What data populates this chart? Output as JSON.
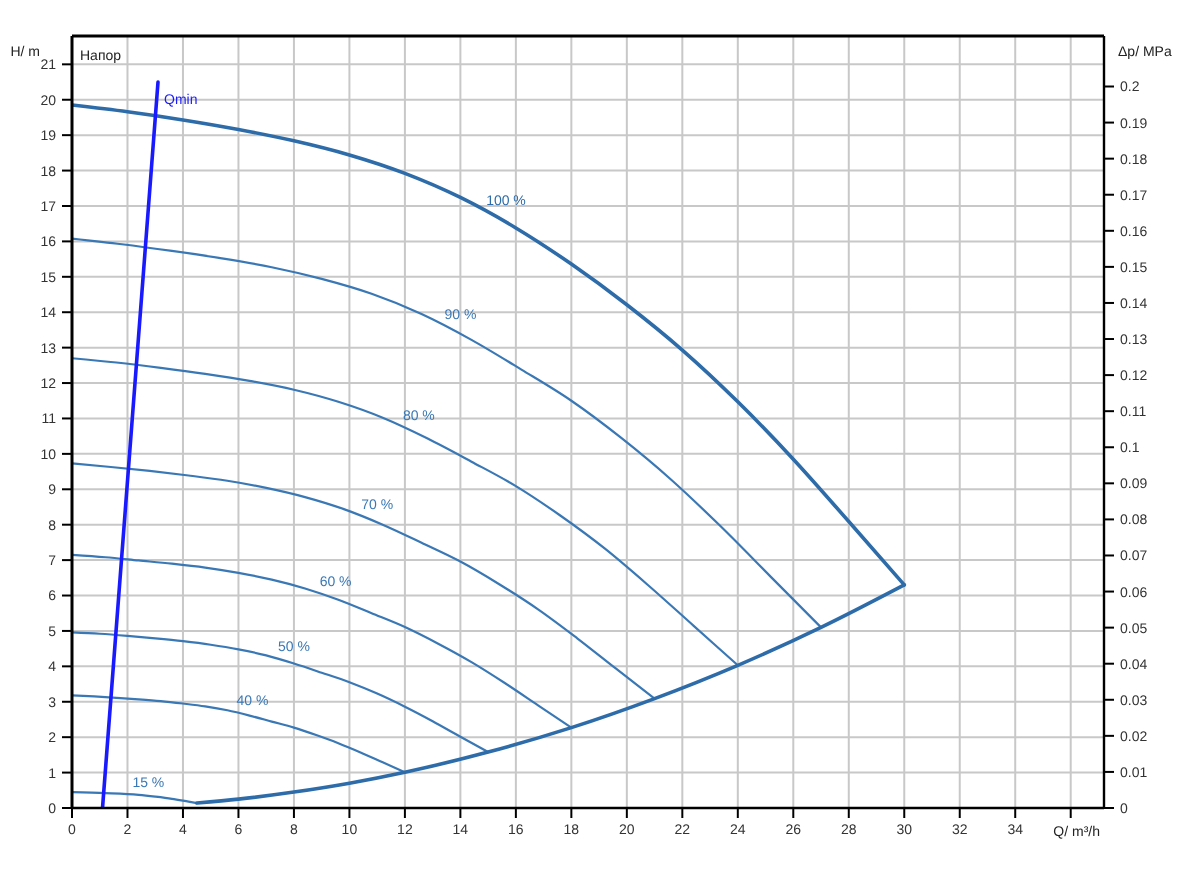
{
  "chart_data": {
    "type": "line",
    "title": "Напор",
    "xlabel": "Q/ m³/h",
    "ylabel": "H/ m",
    "y2label": "Δp/ MPa",
    "xlim": [
      0,
      37.2
    ],
    "xticks": [
      0,
      2,
      4,
      6,
      8,
      10,
      12,
      14,
      16,
      18,
      20,
      22,
      24,
      26,
      28,
      30,
      32,
      34,
      {
        "value": 36,
        "label": null
      }
    ],
    "ylim": [
      0,
      21.8
    ],
    "yticks": [
      0,
      1,
      2,
      3,
      4,
      5,
      6,
      7,
      8,
      9,
      10,
      11,
      12,
      13,
      14,
      15,
      16,
      17,
      18,
      19,
      20,
      21
    ],
    "y2lim": [
      0,
      0.214
    ],
    "y2ticks": [
      0,
      0.01,
      0.02,
      0.03,
      0.04,
      0.05,
      0.06,
      0.07,
      0.08,
      0.09,
      0.1,
      0.11,
      0.12,
      0.13,
      0.14,
      0.15,
      0.16,
      0.17,
      0.18,
      0.19,
      0.2
    ],
    "grid": true,
    "marker": "none",
    "line_style": "solid",
    "series": [
      {
        "name": "100 %",
        "color": "#2d6ca9",
        "x": [
          0,
          2,
          4,
          6,
          8,
          10,
          12,
          14,
          16,
          18,
          20,
          22,
          24,
          26,
          28,
          30
        ],
        "values": [
          19.85,
          19.66,
          19.43,
          19.16,
          18.84,
          18.44,
          17.92,
          17.24,
          16.38,
          15.36,
          14.21,
          12.93,
          11.47,
          9.85,
          8.09,
          6.3
        ]
      },
      {
        "name": "90 %",
        "color": "#3a78b5",
        "x": [
          0,
          1.8,
          3.6,
          5.4,
          7.2,
          9,
          10.8,
          12.6,
          14.4,
          16.2,
          18,
          19.8,
          21.6,
          23.4,
          25.2,
          27
        ],
        "values": [
          16.08,
          15.92,
          15.73,
          15.52,
          15.27,
          14.94,
          14.52,
          13.95,
          13.22,
          12.38,
          11.5,
          10.45,
          9.27,
          7.94,
          6.52,
          5.1
        ]
      },
      {
        "name": "80 %",
        "color": "#3a78b5",
        "x": [
          0,
          1.6,
          3.2,
          4.8,
          6.4,
          8,
          9.6,
          11.2,
          12.8,
          14.4,
          16,
          17.6,
          19.2,
          20.8,
          22.4,
          24
        ],
        "values": [
          12.7,
          12.58,
          12.43,
          12.26,
          12.06,
          11.81,
          11.47,
          11.02,
          10.44,
          9.78,
          9.09,
          8.26,
          7.33,
          6.27,
          5.15,
          4.03
        ]
      },
      {
        "name": "70 %",
        "color": "#3a78b5",
        "x": [
          0,
          1.4,
          2.8,
          4.2,
          5.6,
          7,
          8.4,
          9.8,
          11.2,
          12.6,
          14,
          15.4,
          16.8,
          18.2,
          19.6,
          21
        ],
        "values": [
          9.73,
          9.63,
          9.52,
          9.39,
          9.24,
          9.04,
          8.78,
          8.44,
          8.0,
          7.49,
          6.96,
          6.32,
          5.61,
          4.8,
          3.94,
          3.09
        ]
      },
      {
        "name": "60 %",
        "color": "#3a78b5",
        "x": [
          0,
          1.2,
          2.4,
          3.6,
          4.8,
          6,
          7.2,
          8.4,
          9.6,
          10.8,
          12,
          13.2,
          14.4,
          15.6,
          16.8,
          18
        ],
        "values": [
          7.15,
          7.08,
          6.99,
          6.9,
          6.79,
          6.64,
          6.45,
          6.2,
          5.88,
          5.5,
          5.11,
          4.64,
          4.12,
          3.53,
          2.9,
          2.27
        ]
      },
      {
        "name": "50 %",
        "color": "#3a78b5",
        "x": [
          0,
          1,
          2,
          3,
          4,
          5,
          6,
          7,
          8,
          9,
          10,
          11,
          12,
          13,
          14,
          15
        ],
        "values": [
          4.96,
          4.92,
          4.86,
          4.79,
          4.71,
          4.61,
          4.48,
          4.31,
          4.08,
          3.82,
          3.55,
          3.23,
          2.86,
          2.45,
          2.01,
          1.58
        ]
      },
      {
        "name": "40 %",
        "color": "#3a78b5",
        "x": [
          0,
          0.8,
          1.6,
          2.4,
          3.2,
          4,
          4.8,
          5.6,
          6.4,
          7.2,
          8,
          8.8,
          9.6,
          10.4,
          11.2,
          12
        ],
        "values": [
          3.18,
          3.15,
          3.11,
          3.07,
          3.02,
          2.95,
          2.87,
          2.76,
          2.61,
          2.44,
          2.27,
          2.06,
          1.83,
          1.57,
          1.29,
          1.01
        ]
      },
      {
        "name": "15 %",
        "color": "#3a78b5",
        "x": [
          0,
          1.2,
          2.4,
          3,
          3.6,
          4.2,
          4.5
        ],
        "values": [
          0.45,
          0.42,
          0.37,
          0.32,
          0.26,
          0.18,
          0.14
        ]
      },
      {
        "color": "#2d6ca9",
        "x": [
          4.5,
          6,
          8,
          10,
          12,
          15,
          18,
          21,
          24,
          27,
          30
        ],
        "values": [
          0.14,
          0.25,
          0.45,
          0.7,
          1.01,
          1.58,
          2.27,
          3.09,
          4.03,
          5.1,
          6.3
        ]
      },
      {
        "name": "Qmin",
        "color": "#1a1aff",
        "x": [
          1.1,
          3.1
        ],
        "values": [
          0,
          20.5
        ]
      }
    ]
  }
}
